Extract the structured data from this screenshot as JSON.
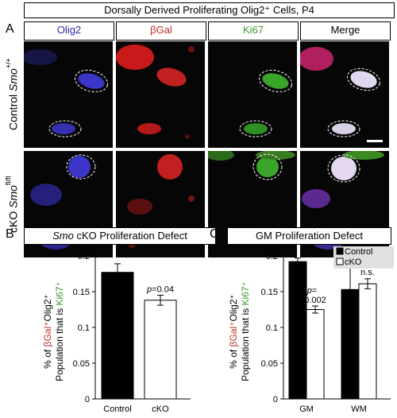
{
  "figure": {
    "panel_a": {
      "letter": "A",
      "title": "Dorsally Derived Proliferating Olig2⁺ Cells, P4",
      "columns": [
        {
          "label": "Olig2",
          "color": "#2a2aa8"
        },
        {
          "label": "βGal",
          "color": "#c0302a"
        },
        {
          "label": "Ki67",
          "color": "#3a9a2a"
        },
        {
          "label": "Merge",
          "color": "#000000"
        }
      ],
      "rows": [
        {
          "prefix": "Control ",
          "gene": "Smo",
          "sup": "+/+"
        },
        {
          "prefix": "cKO ",
          "gene": "Smo",
          "sup": "fl/fl"
        }
      ]
    },
    "panel_b": {
      "letter": "B",
      "title_italic": "Smo",
      "title_rest": " cKO Proliferation Defect",
      "ylabel_line1_a": "% of ",
      "ylabel_line1_b": "βGal",
      "ylabel_line1_c": "⁺",
      "ylabel_line1_d": "Olig2",
      "ylabel_line1_e": "⁺",
      "ylabel_line2_a": "Population that is ",
      "ylabel_line2_b": "Ki67",
      "ylabel_line2_c": "⁺",
      "annotation": "p=0.04"
    },
    "panel_c": {
      "letter": "C",
      "title": "GM Proliferation Defect",
      "legend": [
        "Control",
        "cKO"
      ],
      "annotation_p_line1": "p=",
      "annotation_p_line2": "0.002",
      "annotation_ns": "n.s."
    }
  },
  "chart_data": [
    {
      "type": "bar",
      "title": "Smo cKO Proliferation Defect",
      "categories": [
        "Control",
        "cKO"
      ],
      "values": [
        0.177,
        0.138
      ],
      "errors": [
        0.012,
        0.007
      ],
      "colors": [
        "#000000",
        "#ffffff"
      ],
      "ylim": [
        0,
        0.2
      ],
      "yticks": [
        "0",
        "0.05",
        "0.1",
        "0.15",
        "0.2"
      ],
      "ylabel": "% of βGal⁺Olig2⁺ Population that is Ki67⁺",
      "annotations": [
        "p=0.04"
      ]
    },
    {
      "type": "bar",
      "title": "GM Proliferation Defect",
      "categories": [
        "GM",
        "WM"
      ],
      "series": [
        {
          "name": "Control",
          "values": [
            0.192,
            0.153
          ],
          "errors": [
            0.005,
            0.03
          ],
          "color": "#000000"
        },
        {
          "name": "cKO",
          "values": [
            0.125,
            0.161
          ],
          "errors": [
            0.005,
            0.007
          ],
          "color": "#ffffff"
        }
      ],
      "ylim": [
        0,
        0.2
      ],
      "yticks": [
        "0",
        "0.05",
        "0.1",
        "0.15",
        "0.2"
      ],
      "ylabel": "% of βGal⁺Olig2⁺ Population that is Ki67⁺",
      "annotations": [
        "p=0.002",
        "n.s."
      ],
      "legend_position": "top-right"
    }
  ]
}
